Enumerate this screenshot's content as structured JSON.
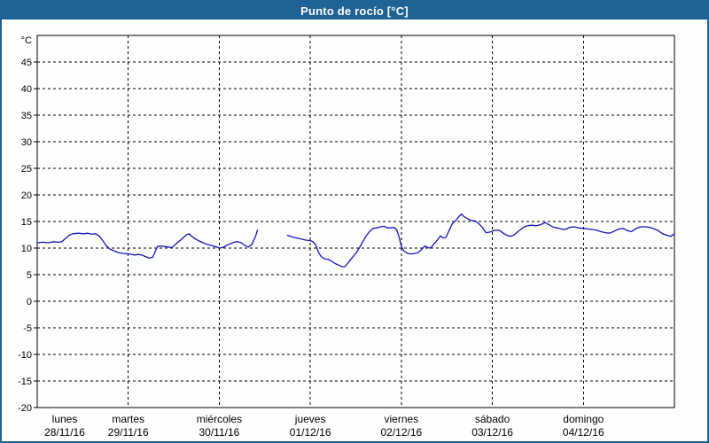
{
  "title": "Punto de rocío [°C]",
  "colors": {
    "frame": "#1F6396",
    "titlebar_bg": "#1F6396",
    "titlebar_text": "#FFFFFF",
    "panel_bg": "#FDFFFD",
    "axis": "#000000",
    "grid": "#000000",
    "text": "#000000",
    "line": "#1414BE"
  },
  "chart_data": {
    "type": "line",
    "title": "Punto de rocío [°C]",
    "ylabel": "°C",
    "ylim": [
      -20,
      50
    ],
    "ytick_min": -20,
    "ytick_max": 45,
    "ytick_step": 5,
    "grid": "dashed",
    "legend": "none",
    "x_axis": {
      "xlim_days": [
        0,
        7
      ],
      "days": [
        {
          "name": "lunes",
          "date": "28/11/16"
        },
        {
          "name": "martes",
          "date": "29/11/16"
        },
        {
          "name": "miércoles",
          "date": "30/11/16"
        },
        {
          "name": "jueves",
          "date": "01/12/16"
        },
        {
          "name": "viernes",
          "date": "02/12/16"
        },
        {
          "name": "sábado",
          "date": "03/12/16"
        },
        {
          "name": "domingo",
          "date": "04/12/16"
        }
      ]
    },
    "series": [
      {
        "name": "Punto de rocío",
        "units": "°C",
        "x_units": "days since 28/11/16 00:00",
        "color": "#1414BE",
        "segments": [
          [
            [
              0.0,
              11.0
            ],
            [
              0.06,
              11.1
            ],
            [
              0.12,
              11.0
            ],
            [
              0.18,
              11.2
            ],
            [
              0.23,
              11.1
            ],
            [
              0.27,
              11.2
            ],
            [
              0.31,
              11.8
            ],
            [
              0.35,
              12.4
            ],
            [
              0.39,
              12.7
            ],
            [
              0.45,
              12.8
            ],
            [
              0.51,
              12.7
            ],
            [
              0.56,
              12.8
            ],
            [
              0.6,
              12.6
            ],
            [
              0.64,
              12.7
            ],
            [
              0.68,
              12.3
            ],
            [
              0.72,
              11.4
            ],
            [
              0.76,
              10.4
            ],
            [
              0.8,
              9.8
            ],
            [
              0.84,
              9.5
            ],
            [
              0.9,
              9.1
            ],
            [
              0.95,
              9.0
            ],
            [
              1.01,
              8.9
            ],
            [
              1.07,
              8.7
            ],
            [
              1.11,
              8.8
            ],
            [
              1.15,
              8.7
            ],
            [
              1.19,
              8.4
            ],
            [
              1.23,
              8.1
            ],
            [
              1.27,
              8.3
            ],
            [
              1.3,
              9.5
            ],
            [
              1.32,
              10.3
            ],
            [
              1.36,
              10.4
            ],
            [
              1.4,
              10.3
            ],
            [
              1.44,
              10.2
            ],
            [
              1.48,
              10.1
            ],
            [
              1.52,
              10.7
            ],
            [
              1.56,
              11.3
            ],
            [
              1.6,
              11.9
            ],
            [
              1.64,
              12.5
            ],
            [
              1.67,
              12.7
            ],
            [
              1.69,
              12.3
            ],
            [
              1.73,
              11.8
            ],
            [
              1.77,
              11.4
            ],
            [
              1.81,
              11.1
            ],
            [
              1.85,
              10.8
            ],
            [
              1.89,
              10.6
            ],
            [
              1.93,
              10.4
            ],
            [
              1.97,
              10.2
            ],
            [
              2.01,
              10.0
            ],
            [
              2.05,
              10.2
            ],
            [
              2.08,
              10.5
            ],
            [
              2.12,
              10.8
            ],
            [
              2.16,
              11.1
            ],
            [
              2.2,
              11.2
            ],
            [
              2.24,
              11.0
            ],
            [
              2.28,
              10.5
            ],
            [
              2.32,
              10.2
            ],
            [
              2.36,
              10.7
            ],
            [
              2.4,
              12.3
            ],
            [
              2.42,
              13.4
            ]
          ],
          [
            [
              2.75,
              12.4
            ],
            [
              2.8,
              12.1
            ],
            [
              2.85,
              11.9
            ],
            [
              2.9,
              11.7
            ],
            [
              2.95,
              11.5
            ],
            [
              3.0,
              11.4
            ],
            [
              3.03,
              11.2
            ],
            [
              3.06,
              10.6
            ],
            [
              3.09,
              9.2
            ],
            [
              3.12,
              8.4
            ],
            [
              3.15,
              8.0
            ],
            [
              3.19,
              7.9
            ],
            [
              3.23,
              7.6
            ],
            [
              3.27,
              7.1
            ],
            [
              3.31,
              6.8
            ],
            [
              3.35,
              6.5
            ],
            [
              3.38,
              6.5
            ],
            [
              3.42,
              7.3
            ],
            [
              3.46,
              8.2
            ],
            [
              3.5,
              9.0
            ],
            [
              3.53,
              9.8
            ],
            [
              3.57,
              11.0
            ],
            [
              3.61,
              12.2
            ],
            [
              3.65,
              13.1
            ],
            [
              3.69,
              13.7
            ],
            [
              3.73,
              13.8
            ],
            [
              3.77,
              14.0
            ],
            [
              3.81,
              14.1
            ],
            [
              3.85,
              13.8
            ],
            [
              3.88,
              13.8
            ],
            [
              3.92,
              13.9
            ],
            [
              3.95,
              13.4
            ],
            [
              3.97,
              12.4
            ],
            [
              4.0,
              10.3
            ],
            [
              4.03,
              9.4
            ],
            [
              4.07,
              9.0
            ],
            [
              4.11,
              8.9
            ],
            [
              4.15,
              9.0
            ],
            [
              4.19,
              9.2
            ],
            [
              4.23,
              9.9
            ],
            [
              4.26,
              10.4
            ],
            [
              4.29,
              10.1
            ],
            [
              4.32,
              10.0
            ],
            [
              4.36,
              10.8
            ],
            [
              4.4,
              11.6
            ],
            [
              4.43,
              12.3
            ],
            [
              4.46,
              11.9
            ],
            [
              4.49,
              12.0
            ],
            [
              4.53,
              13.5
            ],
            [
              4.56,
              14.6
            ],
            [
              4.6,
              15.2
            ],
            [
              4.63,
              15.9
            ],
            [
              4.66,
              16.4
            ],
            [
              4.69,
              15.9
            ],
            [
              4.73,
              15.5
            ],
            [
              4.77,
              15.2
            ],
            [
              4.81,
              15.1
            ],
            [
              4.85,
              14.6
            ],
            [
              4.89,
              13.9
            ],
            [
              4.93,
              12.9
            ],
            [
              4.97,
              13.0
            ],
            [
              5.0,
              13.2
            ],
            [
              5.04,
              13.4
            ],
            [
              5.08,
              13.3
            ],
            [
              5.12,
              12.8
            ],
            [
              5.16,
              12.4
            ],
            [
              5.2,
              12.2
            ],
            [
              5.24,
              12.5
            ],
            [
              5.28,
              13.1
            ],
            [
              5.32,
              13.6
            ],
            [
              5.35,
              14.0
            ],
            [
              5.39,
              14.2
            ],
            [
              5.43,
              14.3
            ],
            [
              5.48,
              14.2
            ],
            [
              5.53,
              14.4
            ],
            [
              5.58,
              14.8
            ],
            [
              5.62,
              14.4
            ],
            [
              5.66,
              14.0
            ],
            [
              5.71,
              13.8
            ],
            [
              5.75,
              13.6
            ],
            [
              5.8,
              13.5
            ],
            [
              5.85,
              13.9
            ],
            [
              5.9,
              14.0
            ],
            [
              5.95,
              13.8
            ],
            [
              6.0,
              13.7
            ],
            [
              6.05,
              13.6
            ],
            [
              6.09,
              13.5
            ],
            [
              6.14,
              13.4
            ],
            [
              6.19,
              13.1
            ],
            [
              6.24,
              12.9
            ],
            [
              6.29,
              12.8
            ],
            [
              6.34,
              13.2
            ],
            [
              6.39,
              13.6
            ],
            [
              6.44,
              13.7
            ],
            [
              6.48,
              13.3
            ],
            [
              6.53,
              13.1
            ],
            [
              6.58,
              13.7
            ],
            [
              6.63,
              14.0
            ],
            [
              6.68,
              14.0
            ],
            [
              6.73,
              13.9
            ],
            [
              6.78,
              13.6
            ],
            [
              6.82,
              13.3
            ],
            [
              6.87,
              12.7
            ],
            [
              6.92,
              12.4
            ],
            [
              6.96,
              12.2
            ],
            [
              7.0,
              12.7
            ]
          ]
        ]
      }
    ]
  }
}
